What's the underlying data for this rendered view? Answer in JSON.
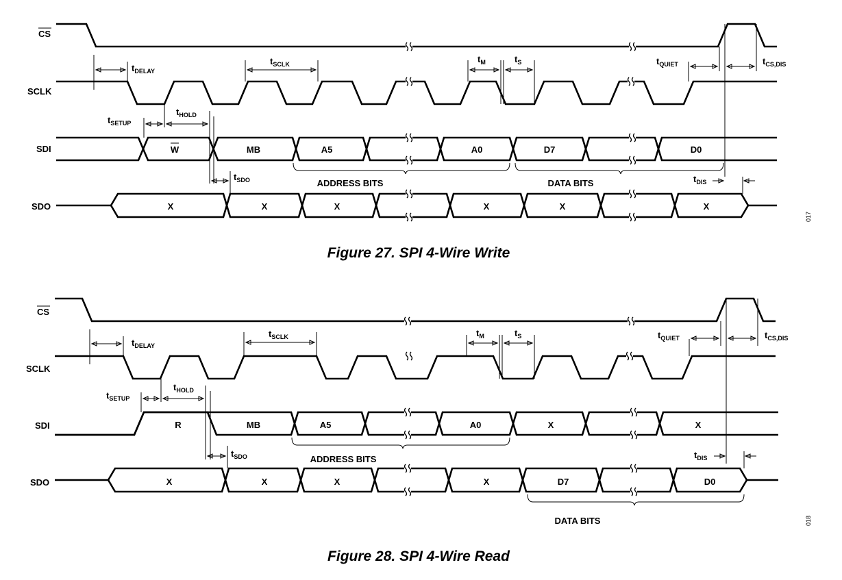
{
  "figures": [
    {
      "caption": "Figure 27. SPI 4-Wire Write",
      "side_id": "017",
      "signals": {
        "cs": "CS",
        "sclk": "SCLK",
        "sdi": "SDI",
        "sdo": "SDO"
      },
      "timing": {
        "t_delay": [
          "t",
          "DELAY"
        ],
        "t_sclk": [
          "t",
          "SCLK"
        ],
        "t_m": [
          "t",
          "M"
        ],
        "t_s": [
          "t",
          "S"
        ],
        "t_quiet": [
          "t",
          "QUIET"
        ],
        "t_csdis": [
          "t",
          "CS,DIS"
        ],
        "t_setup": [
          "t",
          "SETUP"
        ],
        "t_hold": [
          "t",
          "HOLD"
        ],
        "t_sdo": [
          "t",
          "SDO"
        ],
        "t_dis": [
          "t",
          "DIS"
        ]
      },
      "sdi_cells": [
        "W",
        "MB",
        "A5",
        "",
        "A0",
        "D7",
        "",
        "D0"
      ],
      "sdo_cells": [
        "X",
        "X",
        "X",
        "",
        "X",
        "X",
        "",
        "X"
      ],
      "braces": [
        "ADDRESS BITS",
        "DATA BITS"
      ]
    },
    {
      "caption": "Figure 28. SPI 4-Wire Read",
      "side_id": "018",
      "signals": {
        "cs": "CS",
        "sclk": "SCLK",
        "sdi": "SDI",
        "sdo": "SDO"
      },
      "timing": {
        "t_delay": [
          "t",
          "DELAY"
        ],
        "t_sclk": [
          "t",
          "SCLK"
        ],
        "t_m": [
          "t",
          "M"
        ],
        "t_s": [
          "t",
          "S"
        ],
        "t_quiet": [
          "t",
          "QUIET"
        ],
        "t_csdis": [
          "t",
          "CS,DIS"
        ],
        "t_setup": [
          "t",
          "SETUP"
        ],
        "t_hold": [
          "t",
          "HOLD"
        ],
        "t_sdo": [
          "t",
          "SDO"
        ],
        "t_dis": [
          "t",
          "DIS"
        ]
      },
      "sdi_cells": [
        "R",
        "MB",
        "A5",
        "",
        "A0",
        "X",
        "",
        "X"
      ],
      "sdo_cells": [
        "X",
        "X",
        "X",
        "",
        "X",
        "D7",
        "",
        "D0"
      ],
      "braces": [
        "ADDRESS BITS",
        "DATA BITS"
      ]
    }
  ]
}
